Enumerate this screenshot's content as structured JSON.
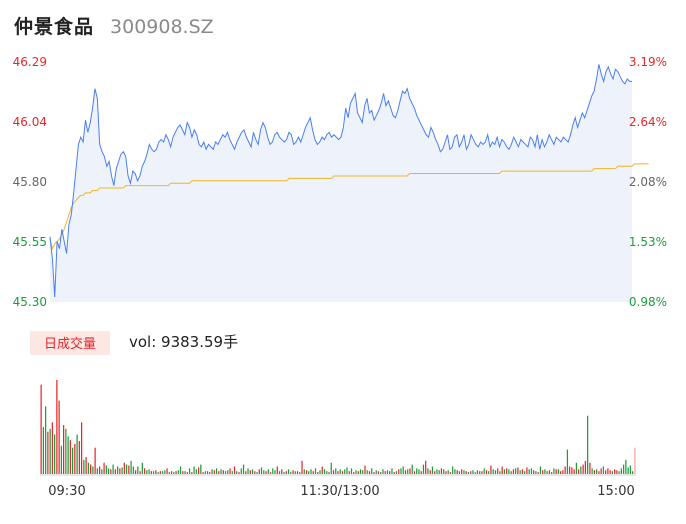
{
  "header": {
    "stock_name": "仲景食品",
    "stock_code": "300908.SZ"
  },
  "volume_panel": {
    "badge_label": "日成交量",
    "vol_label": "vol: 9383.59手"
  },
  "colors": {
    "up": "#e8262a",
    "down": "#1a9e3a",
    "price_line": "#4a7ff0",
    "avg_line": "#f0b429",
    "area_fill": "#eef3fb",
    "badge_bg": "#fde7e3"
  },
  "chart_data": [
    {
      "type": "line",
      "title": "",
      "x_tick_labels": [
        "09:30",
        "11:30/13:00",
        "15:00"
      ],
      "y_left_ticks": [
        "46.29",
        "46.04",
        "45.80",
        "45.55",
        "45.30"
      ],
      "y_right_ticks": [
        "3.19%",
        "2.64%",
        "2.08%",
        "1.53%",
        "0.98%"
      ],
      "ylim": [
        45.3,
        46.29
      ],
      "grid": false,
      "series": [
        {
          "values": [
            45.57,
            45.48,
            45.32,
            45.55,
            45.52,
            45.6,
            45.55,
            45.5,
            45.62,
            45.66,
            45.75,
            45.85,
            45.95,
            45.98,
            45.96,
            46.05,
            46.0,
            46.04,
            46.1,
            46.18,
            46.14,
            45.95,
            45.92,
            45.9,
            45.86,
            45.88,
            45.82,
            45.78,
            45.85,
            45.88,
            45.91,
            45.92,
            45.9,
            45.82,
            45.79,
            45.84,
            45.83,
            45.8,
            45.82,
            45.86,
            45.88,
            45.91,
            45.95,
            45.93,
            45.92,
            45.93,
            45.96,
            45.97,
            45.96,
            45.99,
            45.97,
            45.94,
            45.98,
            46.0,
            46.02,
            46.03,
            46.01,
            45.99,
            46.04,
            46.02,
            45.98,
            46.01,
            45.99,
            45.95,
            45.94,
            45.96,
            45.93,
            45.95,
            45.94,
            45.93,
            45.96,
            45.95,
            45.97,
            45.99,
            45.98,
            46.0,
            45.97,
            45.95,
            45.93,
            45.96,
            45.98,
            46.0,
            46.01,
            45.98,
            45.96,
            45.94,
            46.0,
            45.97,
            45.95,
            46.01,
            46.04,
            46.02,
            45.98,
            45.95,
            45.96,
            45.99,
            46.0,
            45.98,
            45.97,
            45.96,
            45.97,
            46.0,
            45.99,
            45.95,
            45.96,
            45.98,
            45.96,
            45.99,
            46.02,
            46.04,
            46.06,
            46.01,
            45.97,
            45.95,
            45.96,
            45.98,
            45.97,
            45.99,
            46.0,
            45.98,
            45.99,
            45.98,
            45.97,
            45.98,
            46.02,
            46.1,
            46.06,
            46.12,
            46.14,
            46.16,
            46.08,
            46.06,
            46.04,
            46.11,
            46.14,
            46.08,
            46.09,
            46.05,
            46.07,
            46.09,
            46.12,
            46.16,
            46.11,
            46.13,
            46.1,
            46.07,
            46.06,
            46.09,
            46.13,
            46.17,
            46.16,
            46.18,
            46.14,
            46.12,
            46.1,
            46.07,
            46.05,
            46.03,
            46.01,
            45.99,
            45.98,
            46.02,
            46.0,
            45.97,
            45.95,
            45.92,
            45.93,
            45.96,
            45.99,
            45.93,
            45.94,
            45.98,
            45.99,
            45.94,
            45.96,
            45.99,
            45.93,
            45.95,
            45.99,
            45.97,
            45.95,
            45.94,
            45.96,
            45.95,
            45.96,
            45.99,
            45.94,
            45.96,
            45.95,
            45.98,
            45.94,
            45.97,
            45.96,
            45.94,
            45.93,
            45.95,
            45.98,
            45.96,
            45.94,
            45.97,
            45.96,
            45.95,
            45.94,
            45.98,
            45.97,
            45.94,
            45.99,
            45.93,
            45.97,
            45.94,
            45.96,
            45.99,
            45.97,
            45.95,
            45.98,
            45.97,
            45.96,
            45.98,
            45.97,
            45.96,
            45.99,
            46.03,
            46.06,
            46.02,
            46.05,
            46.08,
            46.06,
            46.09,
            46.12,
            46.15,
            46.17,
            46.22,
            46.28,
            46.24,
            46.21,
            46.25,
            46.27,
            46.24,
            46.22,
            46.26,
            46.25,
            46.23,
            46.21,
            46.2,
            46.22,
            46.21,
            46.21
          ]
        },
        {
          "values": [
            45.56,
            45.52,
            45.54,
            45.55,
            45.56,
            45.58,
            45.6,
            45.63,
            45.66,
            45.69,
            45.71,
            45.72,
            45.73,
            45.74,
            45.74,
            45.75,
            45.75,
            45.75,
            45.76,
            45.76,
            45.76,
            45.77,
            45.77,
            45.77,
            45.77,
            45.77,
            45.77,
            45.77,
            45.77,
            45.77,
            45.77,
            45.77,
            45.78,
            45.78,
            45.78,
            45.78,
            45.78,
            45.78,
            45.78,
            45.78,
            45.78,
            45.78,
            45.78,
            45.78,
            45.78,
            45.78,
            45.78,
            45.78,
            45.78,
            45.78,
            45.78,
            45.79,
            45.79,
            45.79,
            45.79,
            45.79,
            45.79,
            45.79,
            45.79,
            45.79,
            45.8,
            45.8,
            45.8,
            45.8,
            45.8,
            45.8,
            45.8,
            45.8,
            45.8,
            45.8,
            45.8,
            45.8,
            45.8,
            45.8,
            45.8,
            45.8,
            45.8,
            45.8,
            45.8,
            45.8,
            45.8,
            45.8,
            45.8,
            45.8,
            45.8,
            45.8,
            45.8,
            45.8,
            45.8,
            45.8,
            45.8,
            45.8,
            45.8,
            45.8,
            45.8,
            45.8,
            45.8,
            45.8,
            45.8,
            45.8,
            45.8,
            45.81,
            45.81,
            45.81,
            45.81,
            45.81,
            45.81,
            45.81,
            45.81,
            45.81,
            45.81,
            45.81,
            45.81,
            45.81,
            45.81,
            45.81,
            45.81,
            45.81,
            45.81,
            45.81,
            45.82,
            45.82,
            45.82,
            45.82,
            45.82,
            45.82,
            45.82,
            45.82,
            45.82,
            45.82,
            45.82,
            45.82,
            45.82,
            45.82,
            45.82,
            45.82,
            45.82,
            45.82,
            45.82,
            45.82,
            45.82,
            45.82,
            45.82,
            45.82,
            45.82,
            45.82,
            45.82,
            45.82,
            45.82,
            45.82,
            45.82,
            45.82,
            45.83,
            45.83,
            45.83,
            45.83,
            45.83,
            45.83,
            45.83,
            45.83,
            45.83,
            45.83,
            45.83,
            45.83,
            45.83,
            45.83,
            45.83,
            45.83,
            45.83,
            45.83,
            45.83,
            45.83,
            45.83,
            45.83,
            45.83,
            45.83,
            45.83,
            45.83,
            45.83,
            45.83,
            45.83,
            45.83,
            45.83,
            45.83,
            45.83,
            45.83,
            45.83,
            45.83,
            45.83,
            45.83,
            45.83,
            45.84,
            45.84,
            45.84,
            45.84,
            45.84,
            45.84,
            45.84,
            45.84,
            45.84,
            45.84,
            45.84,
            45.84,
            45.84,
            45.84,
            45.84,
            45.84,
            45.84,
            45.84,
            45.84,
            45.84,
            45.84,
            45.84,
            45.84,
            45.84,
            45.84,
            45.84,
            45.84,
            45.84,
            45.84,
            45.84,
            45.84,
            45.84,
            45.84,
            45.84,
            45.84,
            45.84,
            45.84,
            45.84,
            45.84,
            45.85,
            45.85,
            45.85,
            45.85,
            45.85,
            45.85,
            45.85,
            45.85,
            45.85,
            45.85,
            45.86,
            45.86,
            45.86,
            45.86,
            45.86,
            45.86,
            45.86,
            45.87,
            45.87,
            45.87,
            45.87,
            45.87,
            45.87,
            45.87
          ]
        }
      ]
    },
    {
      "type": "bar",
      "title": "",
      "values": [
        95,
        50,
        72,
        45,
        48,
        55,
        42,
        100,
        78,
        30,
        52,
        48,
        40,
        36,
        28,
        32,
        42,
        35,
        55,
        15,
        18,
        12,
        10,
        8,
        28,
        6,
        8,
        5,
        12,
        9,
        6,
        5,
        10,
        5,
        8,
        6,
        7,
        12,
        10,
        9,
        14,
        8,
        4,
        8,
        3,
        12,
        6,
        4,
        5,
        3,
        3,
        4,
        2,
        3,
        3,
        4,
        6,
        2,
        3,
        2,
        3,
        4,
        8,
        3,
        3,
        2,
        6,
        2,
        8,
        5,
        7,
        10,
        2,
        3,
        3,
        2,
        5,
        4,
        6,
        3,
        5,
        4,
        3,
        4,
        6,
        3,
        8,
        3,
        2,
        6,
        10,
        3,
        6,
        4,
        5,
        3,
        2,
        5,
        7,
        4,
        3,
        5,
        2,
        6,
        4,
        8,
        3,
        5,
        2,
        3,
        5,
        2,
        4,
        3,
        3,
        2,
        14,
        5,
        4,
        3,
        5,
        3,
        6,
        2,
        4,
        8,
        5,
        3,
        2,
        12,
        4,
        6,
        3,
        5,
        3,
        5,
        7,
        3,
        6,
        2,
        4,
        3,
        5,
        4,
        9,
        4,
        3,
        6,
        2,
        4,
        3,
        2,
        5,
        3,
        4,
        3,
        6,
        2,
        3,
        5,
        6,
        8,
        4,
        5,
        6,
        10,
        3,
        6,
        5,
        3,
        10,
        14,
        6,
        4,
        8,
        3,
        5,
        4,
        6,
        5,
        3,
        4,
        2,
        8,
        5,
        4,
        3,
        5,
        4,
        3,
        2,
        3,
        4,
        2,
        4,
        3,
        3,
        6,
        4,
        3,
        9,
        5,
        4,
        6,
        3,
        8,
        5,
        6,
        5,
        3,
        5,
        6,
        7,
        4,
        5,
        3,
        7,
        5,
        6,
        4,
        3,
        2,
        8,
        4,
        5,
        3,
        4,
        2,
        6,
        5,
        5,
        3,
        4,
        8,
        26,
        8,
        7,
        5,
        12,
        5,
        8,
        10,
        14,
        62,
        12,
        6,
        4,
        5,
        3,
        6,
        8,
        4,
        6,
        4,
        3,
        5,
        4,
        3,
        6,
        10,
        15,
        7,
        9,
        3,
        28
      ],
      "up": [
        1,
        0,
        0,
        1,
        0,
        1,
        0,
        1,
        1,
        0,
        1,
        0,
        0,
        1,
        0,
        1,
        0,
        1,
        1,
        0,
        1,
        0,
        1,
        0,
        1,
        0,
        1,
        0,
        1,
        0,
        0,
        1,
        0,
        1,
        0,
        1,
        0,
        1,
        0,
        1,
        0,
        0,
        1,
        0,
        1,
        0,
        1,
        0,
        0,
        1,
        0,
        1,
        0,
        1,
        0,
        0,
        1,
        0,
        1,
        0,
        1,
        0,
        0,
        1,
        0,
        1,
        0,
        1,
        0,
        0,
        1,
        0,
        1,
        0,
        0,
        1,
        0,
        1,
        0,
        1,
        0,
        1,
        0,
        0,
        1,
        0,
        1,
        0,
        1,
        0,
        0,
        1,
        0,
        1,
        0,
        1,
        0,
        1,
        0,
        0,
        1,
        0,
        1,
        0,
        0,
        1,
        0,
        1,
        0,
        1,
        0,
        0,
        1,
        0,
        1,
        0,
        1,
        0,
        1,
        0,
        0,
        1,
        0,
        1,
        0,
        1,
        0,
        0,
        1,
        0,
        1,
        0,
        1,
        0,
        1,
        0,
        0,
        1,
        0,
        1,
        0,
        1,
        0,
        0,
        1,
        0,
        1,
        0,
        1,
        0,
        1,
        0,
        0,
        1,
        0,
        1,
        0,
        1,
        0,
        1,
        0,
        0,
        1,
        0,
        1,
        0,
        1,
        0,
        0,
        1,
        0,
        1,
        0,
        1,
        0,
        1,
        0,
        0,
        1,
        0,
        1,
        0,
        1,
        0,
        0,
        1,
        0,
        1,
        0,
        1,
        0,
        1,
        0,
        0,
        1,
        0,
        1,
        0,
        1,
        0,
        1,
        0,
        0,
        1,
        0,
        1,
        0,
        1,
        0,
        0,
        1,
        0,
        1,
        0,
        1,
        0,
        1,
        0,
        0,
        1,
        0,
        1,
        0,
        1,
        0,
        0,
        1,
        1,
        0,
        1,
        0,
        1,
        1,
        1,
        0,
        1,
        1,
        1,
        0,
        1,
        0,
        1,
        1,
        0,
        1,
        0,
        1,
        0,
        1,
        1,
        0,
        1,
        1,
        1,
        0,
        1,
        1
      ]
    }
  ]
}
